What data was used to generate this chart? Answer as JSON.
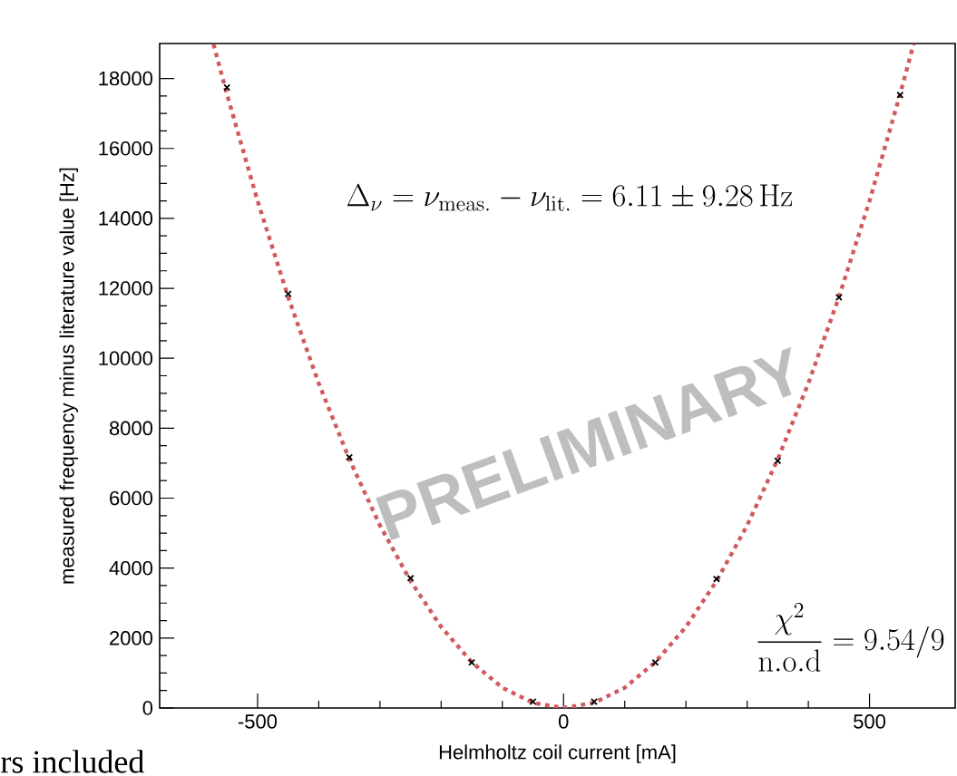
{
  "chart_data": {
    "type": "scatter",
    "xlabel": "Helmholtz coil current [mA]",
    "ylabel": "measured frequency minus literature value [Hz]",
    "xlim": [
      -660,
      640
    ],
    "ylim": [
      0,
      19000
    ],
    "xticks": [
      -500,
      0,
      500
    ],
    "yticks": [
      0,
      2000,
      4000,
      6000,
      8000,
      10000,
      12000,
      14000,
      16000,
      18000
    ],
    "annotations": [
      "\\Delta_{\\nu} = \\nu_{\\mathrm{meas.}} - \\nu_{\\mathrm{lit.}} = 6.11 \\pm 9.28\\,\\mathrm{Hz}",
      "\\frac{\\chi^2}{\\mathrm{n.o.d}} = 9.54/9",
      "PRELIMINARY",
      "rs included"
    ],
    "series": [
      {
        "type": "line",
        "color": "#d05a5e",
        "line_style": "dotted",
        "marker": "none",
        "x": [
          -572,
          -550,
          -500,
          -450,
          -400,
          -350,
          -300,
          -250,
          -200,
          -150,
          -100,
          -50,
          0,
          50,
          100,
          150,
          200,
          250,
          300,
          350,
          400,
          450,
          500,
          550,
          572
        ],
        "values": [
          18980,
          17550,
          14500,
          11750,
          9280,
          7110,
          5220,
          3630,
          2320,
          1310,
          580,
          150,
          0,
          150,
          580,
          1310,
          2320,
          3630,
          5220,
          7110,
          9280,
          11750,
          14500,
          17550,
          18980
        ]
      },
      {
        "color": "#000000",
        "marker": "cross",
        "x": [
          -550,
          -450,
          -350,
          -250,
          -150,
          -50,
          50,
          150,
          250,
          350,
          450,
          550
        ],
        "values": [
          17740,
          11840,
          7170,
          3710,
          1300,
          180,
          180,
          1300,
          3690,
          7070,
          11740,
          17530
        ]
      }
    ]
  }
}
